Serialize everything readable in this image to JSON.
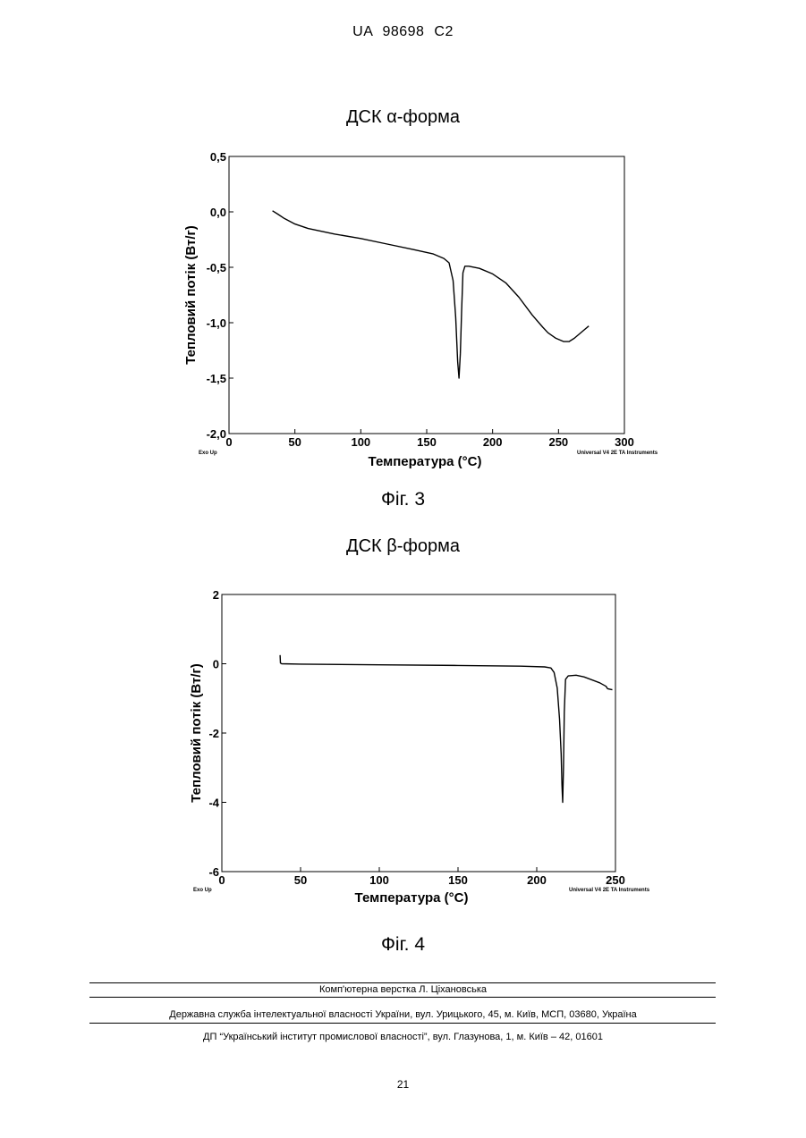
{
  "header": {
    "patent_number": "UA 98698 C2"
  },
  "figures": [
    {
      "title": "ДСК α-форма",
      "caption": "Фіг. 3"
    },
    {
      "title": "ДСК β-форма",
      "caption": "Фіг. 4"
    }
  ],
  "chart_data": [
    {
      "type": "line",
      "title": "ДСК α-форма",
      "xlabel": "Температура (°C)",
      "ylabel": "Тепловий потік (Вт/г)",
      "xlim": [
        0,
        300
      ],
      "ylim": [
        -2.0,
        0.5
      ],
      "x_ticks": [
        0,
        50,
        100,
        150,
        200,
        250,
        300
      ],
      "y_ticks": [
        0.5,
        0.0,
        -0.5,
        -1.0,
        -1.5,
        -2.0
      ],
      "y_tick_labels": [
        "0,5",
        "0,0",
        "-0,5",
        "-1,0",
        "-1,5",
        "-2,0"
      ],
      "corner_left": "Exo Up",
      "corner_right": "Universal V4 2E TA Instruments",
      "grid": false,
      "series": [
        {
          "x": [
            33,
            37,
            42,
            50,
            60,
            80,
            100,
            120,
            140,
            155,
            163,
            167,
            170,
            172,
            173.5,
            174.5,
            175.5,
            176.5,
            177.5,
            179,
            182,
            190,
            200,
            210,
            220,
            230,
            238,
            242,
            248,
            254,
            258,
            262,
            266,
            270,
            273
          ],
          "y": [
            0.01,
            -0.02,
            -0.06,
            -0.11,
            -0.15,
            -0.2,
            -0.24,
            -0.29,
            -0.34,
            -0.38,
            -0.42,
            -0.46,
            -0.62,
            -0.95,
            -1.35,
            -1.5,
            -1.28,
            -0.9,
            -0.55,
            -0.49,
            -0.49,
            -0.51,
            -0.56,
            -0.64,
            -0.77,
            -0.93,
            -1.04,
            -1.09,
            -1.14,
            -1.17,
            -1.17,
            -1.14,
            -1.1,
            -1.06,
            -1.03
          ]
        }
      ]
    },
    {
      "type": "line",
      "title": "ДСК β-форма",
      "xlabel": "Температура (°C)",
      "ylabel": "Тепловий потік (Вт/г)",
      "xlim": [
        0,
        250
      ],
      "ylim": [
        -6,
        2
      ],
      "x_ticks": [
        0,
        50,
        100,
        150,
        200,
        250
      ],
      "y_ticks": [
        2,
        0,
        -2,
        -4,
        -6
      ],
      "y_tick_labels": [
        "2",
        "0",
        "-2",
        "-4",
        "-6"
      ],
      "corner_left": "Exo Up",
      "corner_right": "Universal V4 2E TA Instruments",
      "grid": false,
      "series": [
        {
          "x": [
            37,
            37.2,
            38,
            50,
            100,
            150,
            190,
            205,
            209,
            211,
            213,
            214.5,
            215.5,
            216,
            216.5,
            217,
            217.5,
            218.3,
            220,
            225,
            230,
            240,
            244,
            245,
            248
          ],
          "y": [
            0.25,
            0.02,
            0.0,
            -0.01,
            -0.03,
            -0.05,
            -0.07,
            -0.09,
            -0.12,
            -0.25,
            -0.7,
            -1.6,
            -2.6,
            -3.5,
            -4.0,
            -3.0,
            -1.4,
            -0.45,
            -0.35,
            -0.33,
            -0.38,
            -0.55,
            -0.65,
            -0.72,
            -0.75
          ]
        }
      ]
    }
  ],
  "footer": {
    "layout_credit": "Комп'ютерна верстка Л. Ціхановська",
    "office": "Державна служба інтелектуальної власності України, вул. Урицького, 45, м. Київ, МСП, 03680, Україна",
    "institute": "ДП “Український інститут промислової власності”, вул. Глазунова, 1, м. Київ – 42, 01601",
    "page_number": "21"
  }
}
